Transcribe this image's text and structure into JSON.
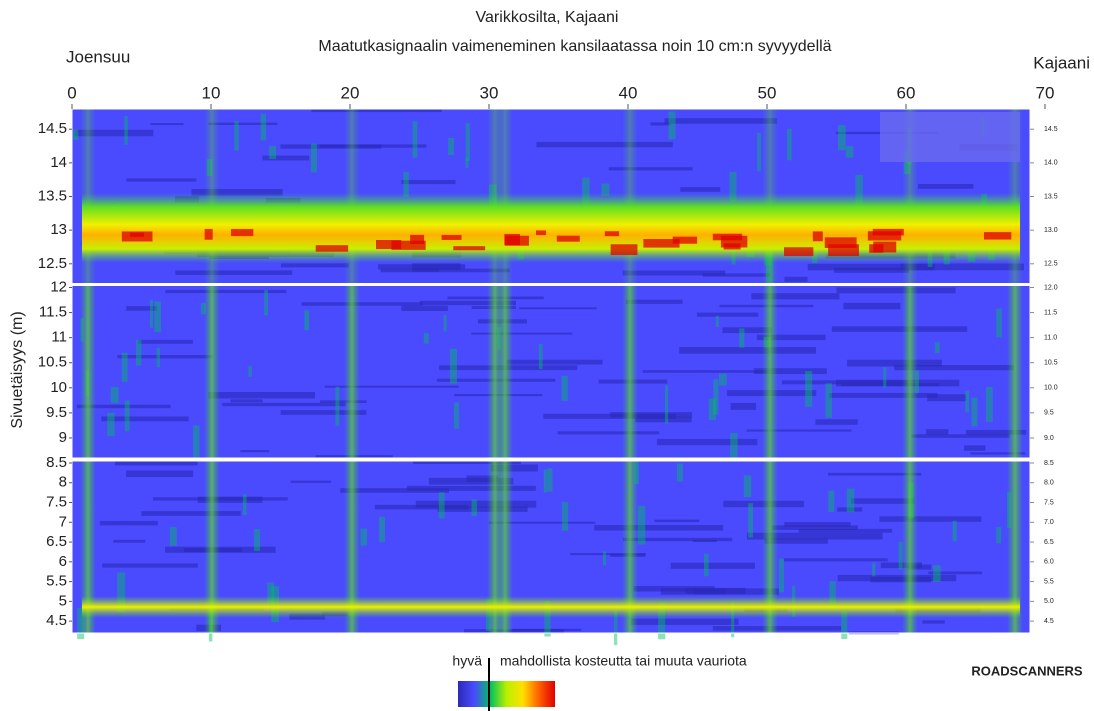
{
  "chart_data": {
    "type": "heatmap",
    "title": "Varikkosilta, Kajaani",
    "subtitle": "Maatutkasignaalin vaimeneminen kansilaatassa noin 10 cm:n syvyydellä",
    "ylabel": "Sivuetäisyys (m)",
    "start_label": "Joensuu",
    "end_label": "Kajaani",
    "xlim": [
      0,
      70
    ],
    "xticks": [
      0,
      10,
      20,
      30,
      40,
      50,
      60,
      70
    ],
    "panels": [
      {
        "ylim": [
          12.2,
          14.8
        ],
        "yticks": [
          12.5,
          13,
          13.5,
          14,
          14.5
        ],
        "y2ticks": [
          {
            "value": 12.5,
            "label": "12.5"
          },
          {
            "value": 13,
            "label": "13.0"
          },
          {
            "value": 13.5,
            "label": "13.5"
          },
          {
            "value": 14,
            "label": "14.0"
          },
          {
            "value": 14.5,
            "label": "14.5"
          }
        ]
      },
      {
        "ylim": [
          8.6,
          12.05
        ],
        "yticks": [
          9,
          9.5,
          10,
          10.5,
          11,
          11.5,
          12
        ],
        "y2ticks": [
          {
            "value": 9,
            "label": "9.0"
          },
          {
            "value": 9.5,
            "label": "9.5"
          },
          {
            "value": 10,
            "label": "10.0"
          },
          {
            "value": 10.5,
            "label": "10.5"
          },
          {
            "value": 11,
            "label": "11.0"
          },
          {
            "value": 11.5,
            "label": "11.5"
          },
          {
            "value": 12,
            "label": "12.0"
          }
        ]
      },
      {
        "ylim": [
          4.2,
          8.55
        ],
        "yticks": [
          4.5,
          5,
          5.5,
          6,
          6.5,
          7,
          7.5,
          8,
          8.5
        ],
        "y2ticks": [
          {
            "value": 4.5,
            "label": "4.5"
          },
          {
            "value": 5,
            "label": "5.0"
          },
          {
            "value": 5.5,
            "label": "5.5"
          },
          {
            "value": 6,
            "label": "6.0"
          },
          {
            "value": 6.5,
            "label": "6.5"
          },
          {
            "value": 7,
            "label": "7.0"
          },
          {
            "value": 7.5,
            "label": "7.5"
          },
          {
            "value": 8,
            "label": "8.0"
          },
          {
            "value": 8.5,
            "label": "8.5"
          }
        ]
      }
    ],
    "colormap": [
      "#2a2ab8",
      "#4a4aff",
      "#00c060",
      "#b8f000",
      "#ffe000",
      "#ff6000",
      "#e00000"
    ],
    "legend": {
      "low_label": "hyvä",
      "high_label": "mahdollista kosteutta tai muuta vauriota"
    },
    "brand": "ROADSCANNERS"
  }
}
